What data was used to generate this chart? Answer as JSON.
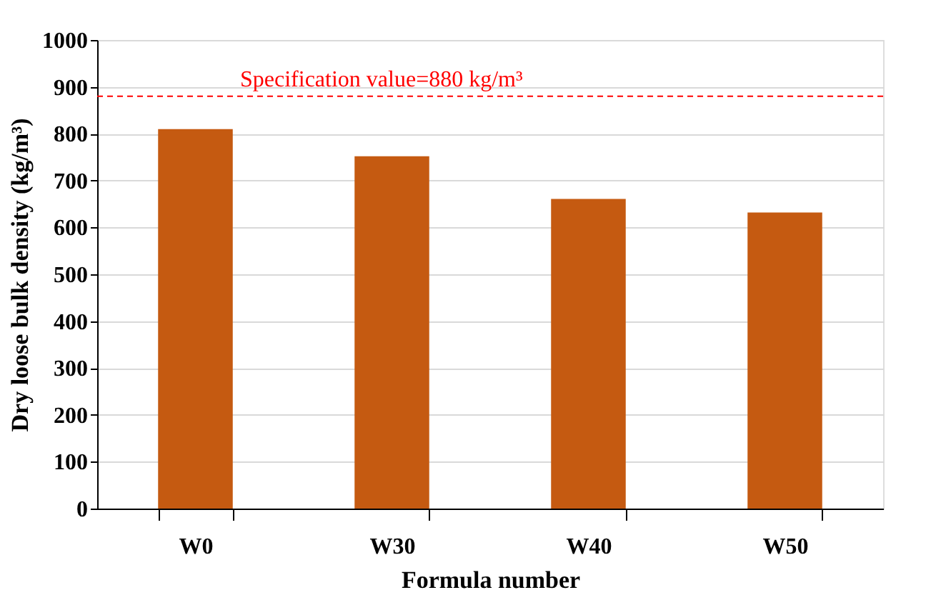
{
  "chart_data": {
    "type": "bar",
    "xlabel": "Formula number",
    "ylabel": "Dry loose bulk density (kg/m³)",
    "categories": [
      "W0",
      "W30",
      "W40",
      "W50"
    ],
    "values": [
      810,
      752,
      661,
      632
    ],
    "color": "#c55a11",
    "ylim": [
      0,
      1000
    ],
    "yticks": [
      0,
      100,
      200,
      300,
      400,
      500,
      600,
      700,
      800,
      900,
      1000
    ],
    "grid": "y",
    "ref_lines": [
      {
        "axis": "y",
        "value": 880,
        "label": "Specification value=880 kg/m³",
        "color": "#ff0000",
        "line_style": "dashed"
      }
    ]
  }
}
